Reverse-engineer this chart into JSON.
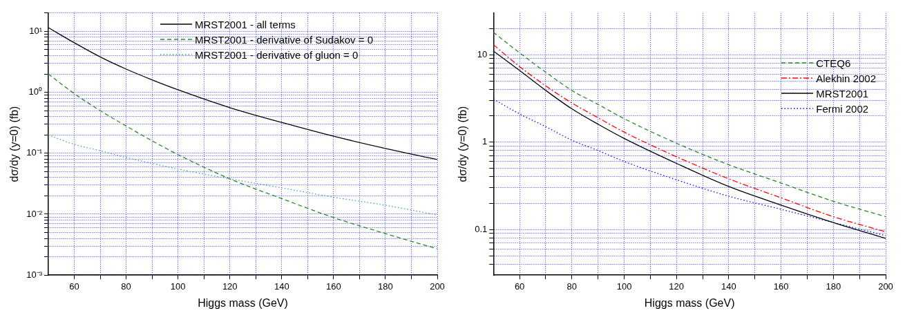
{
  "chart_data": [
    {
      "type": "line",
      "xlabel": "Higgs mass (GeV)",
      "ylabel": "dσ/dy (y=0) (fb)",
      "log": "y",
      "grid": true,
      "legend": "top",
      "xlim": [
        50,
        200
      ],
      "ylim": [
        0.001,
        20
      ],
      "xticks": [
        60,
        {
          "value": 70,
          "label": null
        },
        80,
        {
          "value": 90,
          "label": null
        },
        100,
        {
          "value": 110,
          "label": null
        },
        120,
        {
          "value": 130,
          "label": null
        },
        140,
        {
          "value": 150,
          "label": null
        },
        160,
        {
          "value": 170,
          "label": null
        },
        180,
        {
          "value": 190,
          "label": null
        },
        200
      ],
      "yticks": [
        {
          "value": 0.001,
          "label": "10⁻³"
        },
        {
          "value": 0.002,
          "label": null
        },
        {
          "value": 0.003,
          "label": null
        },
        {
          "value": 0.004,
          "label": null
        },
        {
          "value": 0.005,
          "label": null
        },
        {
          "value": 0.006,
          "label": null
        },
        {
          "value": 0.007,
          "label": null
        },
        {
          "value": 0.008,
          "label": null
        },
        {
          "value": 0.009,
          "label": null
        },
        {
          "value": 0.01,
          "label": "10⁻²"
        },
        {
          "value": 0.02,
          "label": null
        },
        {
          "value": 0.03,
          "label": null
        },
        {
          "value": 0.04,
          "label": null
        },
        {
          "value": 0.05,
          "label": null
        },
        {
          "value": 0.06,
          "label": null
        },
        {
          "value": 0.07,
          "label": null
        },
        {
          "value": 0.08,
          "label": null
        },
        {
          "value": 0.09,
          "label": null
        },
        {
          "value": 0.1,
          "label": "10⁻¹"
        },
        {
          "value": 0.2,
          "label": null
        },
        {
          "value": 0.3,
          "label": null
        },
        {
          "value": 0.4,
          "label": null
        },
        {
          "value": 0.5,
          "label": null
        },
        {
          "value": 0.6,
          "label": null
        },
        {
          "value": 0.7,
          "label": null
        },
        {
          "value": 0.8,
          "label": null
        },
        {
          "value": 0.9,
          "label": null
        },
        {
          "value": 1,
          "label": "10⁰"
        },
        {
          "value": 2,
          "label": null
        },
        {
          "value": 3,
          "label": null
        },
        {
          "value": 4,
          "label": null
        },
        {
          "value": 5,
          "label": null
        },
        {
          "value": 6,
          "label": null
        },
        {
          "value": 7,
          "label": null
        },
        {
          "value": 8,
          "label": null
        },
        {
          "value": 9,
          "label": null
        },
        {
          "value": 10,
          "label": "10¹"
        },
        {
          "value": 20,
          "label": null
        }
      ],
      "x": [
        50,
        60,
        70,
        80,
        90,
        100,
        120,
        140,
        160,
        180,
        200
      ],
      "series": [
        {
          "name": "MRST2001 - all terms",
          "color": "#000000",
          "line_style": "solid",
          "values": [
            11.5,
            6.5,
            3.8,
            2.4,
            1.6,
            1.1,
            0.56,
            0.32,
            0.19,
            0.12,
            0.079
          ]
        },
        {
          "name": "MRST2001 - derivative of Sudakov = 0",
          "color": "#228b22",
          "line_style": "dashed",
          "values": [
            2.0,
            0.95,
            0.5,
            0.28,
            0.16,
            0.095,
            0.038,
            0.018,
            0.0088,
            0.0048,
            0.0027
          ]
        },
        {
          "name": "MRST2001 - derivative of gluon = 0",
          "color": "#3aa0a0",
          "line_style": "dotted",
          "values": [
            0.2,
            0.14,
            0.11,
            0.085,
            0.068,
            0.055,
            0.038,
            0.027,
            0.019,
            0.014,
            0.0097
          ]
        }
      ]
    },
    {
      "type": "line",
      "xlabel": "Higgs mass (GeV)",
      "ylabel": "dσ/dy (y=0) (fb)",
      "log": "y",
      "grid": true,
      "legend": "right",
      "xlim": [
        50,
        200
      ],
      "ylim": [
        0.03,
        30
      ],
      "xticks": [
        60,
        {
          "value": 70,
          "label": null
        },
        80,
        {
          "value": 90,
          "label": null
        },
        100,
        {
          "value": 110,
          "label": null
        },
        120,
        {
          "value": 130,
          "label": null
        },
        140,
        {
          "value": 150,
          "label": null
        },
        160,
        {
          "value": 170,
          "label": null
        },
        180,
        {
          "value": 190,
          "label": null
        },
        200
      ],
      "yticks": [
        {
          "value": 0.04,
          "label": null
        },
        {
          "value": 0.05,
          "label": null
        },
        {
          "value": 0.06,
          "label": null
        },
        {
          "value": 0.07,
          "label": null
        },
        {
          "value": 0.08,
          "label": null
        },
        {
          "value": 0.09,
          "label": null
        },
        0.1,
        {
          "value": 0.2,
          "label": null
        },
        {
          "value": 0.3,
          "label": null
        },
        {
          "value": 0.4,
          "label": null
        },
        {
          "value": 0.5,
          "label": null
        },
        {
          "value": 0.6,
          "label": null
        },
        {
          "value": 0.7,
          "label": null
        },
        {
          "value": 0.8,
          "label": null
        },
        {
          "value": 0.9,
          "label": null
        },
        1,
        {
          "value": 2,
          "label": null
        },
        {
          "value": 3,
          "label": null
        },
        {
          "value": 4,
          "label": null
        },
        {
          "value": 5,
          "label": null
        },
        {
          "value": 6,
          "label": null
        },
        {
          "value": 7,
          "label": null
        },
        {
          "value": 8,
          "label": null
        },
        {
          "value": 9,
          "label": null
        },
        10,
        {
          "value": 20,
          "label": null
        }
      ],
      "x": [
        50,
        60,
        70,
        80,
        90,
        100,
        120,
        140,
        160,
        180,
        200
      ],
      "series": [
        {
          "name": "CTEQ6",
          "color": "#228b22",
          "line_style": "dashed",
          "values": [
            18,
            10.5,
            6.3,
            3.9,
            2.7,
            1.85,
            0.97,
            0.55,
            0.34,
            0.21,
            0.14
          ]
        },
        {
          "name": "Alekhin 2002",
          "color": "#ff0000",
          "line_style": "dashdot",
          "values": [
            13,
            7.3,
            4.4,
            2.8,
            1.9,
            1.3,
            0.68,
            0.38,
            0.23,
            0.14,
            0.094
          ]
        },
        {
          "name": "MRST2001",
          "color": "#000000",
          "line_style": "solid",
          "values": [
            11,
            6.6,
            3.9,
            2.4,
            1.6,
            1.1,
            0.57,
            0.31,
            0.19,
            0.12,
            0.079
          ]
        },
        {
          "name": "Fermi 2002",
          "color": "#0000ff",
          "line_style": "dotted",
          "values": [
            3.1,
            2.1,
            1.5,
            1.05,
            0.8,
            0.6,
            0.37,
            0.24,
            0.17,
            0.12,
            0.085
          ]
        }
      ]
    }
  ]
}
